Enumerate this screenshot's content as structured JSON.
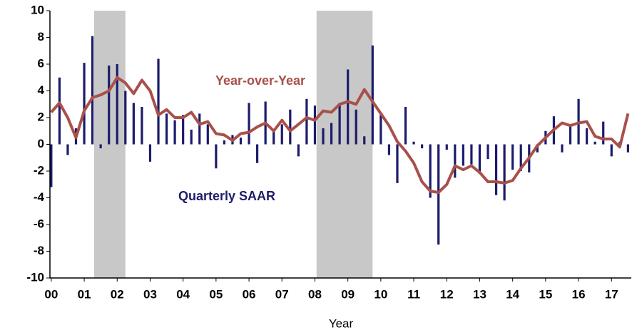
{
  "chart_data": {
    "type": "bar_line",
    "x_label": "Year",
    "annotations": [
      "Year-over-Year",
      "Quarterly SAAR"
    ],
    "xlim": [
      -0.04,
      17.6
    ],
    "ylim": [
      -10,
      10
    ],
    "yticks": [
      -10,
      -8,
      -6,
      -4,
      -2,
      0,
      2,
      4,
      6,
      8,
      10
    ],
    "xticks": [
      {
        "value": 0,
        "label": "00"
      },
      {
        "value": 1,
        "label": "01"
      },
      {
        "value": 2,
        "label": "02"
      },
      {
        "value": 3,
        "label": "03"
      },
      {
        "value": 4,
        "label": "04"
      },
      {
        "value": 5,
        "label": "05"
      },
      {
        "value": 6,
        "label": "06"
      },
      {
        "value": 7,
        "label": "07"
      },
      {
        "value": 8,
        "label": "08"
      },
      {
        "value": 9,
        "label": "09"
      },
      {
        "value": 10,
        "label": "10"
      },
      {
        "value": 11,
        "label": "11"
      },
      {
        "value": 12,
        "label": "12"
      },
      {
        "value": 13,
        "label": "13"
      },
      {
        "value": 14,
        "label": "14"
      },
      {
        "value": 15,
        "label": "15"
      },
      {
        "value": 16,
        "label": "16"
      },
      {
        "value": 17,
        "label": "17"
      }
    ],
    "shaded_regions": [
      [
        1.3,
        2.25
      ],
      [
        8.05,
        9.75
      ]
    ],
    "shade_color": "#c8c8c8",
    "x": [
      0,
      0.25,
      0.5,
      0.75,
      1,
      1.25,
      1.5,
      1.75,
      2,
      2.25,
      2.5,
      2.75,
      3,
      3.25,
      3.5,
      3.75,
      4,
      4.25,
      4.5,
      4.75,
      5,
      5.25,
      5.5,
      5.75,
      6,
      6.25,
      6.5,
      6.75,
      7,
      7.25,
      7.5,
      7.75,
      8,
      8.25,
      8.5,
      8.75,
      9,
      9.25,
      9.5,
      9.75,
      10,
      10.25,
      10.5,
      10.75,
      11,
      11.25,
      11.5,
      11.75,
      12,
      12.25,
      12.5,
      12.75,
      13,
      13.25,
      13.5,
      13.75,
      14,
      14.25,
      14.5,
      14.75,
      15,
      15.25,
      15.5,
      15.75,
      16,
      16.25,
      16.5,
      16.75,
      17,
      17.25,
      17.5
    ],
    "series": [
      {
        "name": "Quarterly SAAR",
        "kind": "bar",
        "color": "#1c1c6b",
        "values": [
          -3.2,
          5.0,
          -0.8,
          1.2,
          6.1,
          8.1,
          -0.3,
          5.9,
          6.0,
          4.0,
          3.1,
          2.8,
          -1.3,
          6.4,
          2.3,
          1.8,
          2.2,
          1.1,
          2.3,
          1.5,
          -1.8,
          0.3,
          0.7,
          0.5,
          3.1,
          -1.4,
          3.2,
          1.0,
          1.5,
          2.6,
          -0.9,
          3.4,
          2.9,
          1.2,
          1.6,
          3.1,
          5.6,
          2.6,
          0.6,
          7.4,
          2.2,
          -0.8,
          -2.9,
          2.8,
          0.2,
          -0.3,
          -4.0,
          -7.5,
          -0.4,
          -2.5,
          -1.6,
          -1.5,
          -2.2,
          -1.1,
          -3.8,
          -4.2,
          -1.9,
          -2.0,
          -2.1,
          -0.6,
          1.0,
          2.1,
          -0.6,
          1.5,
          3.4,
          1.2,
          0.2,
          1.7,
          -0.9,
          0.2,
          -0.6
        ]
      },
      {
        "name": "Year-over-Year",
        "kind": "line",
        "color": "#a9504b",
        "values": [
          2.4,
          3.1,
          2.0,
          0.5,
          2.5,
          3.5,
          3.7,
          4.0,
          5.0,
          4.6,
          3.8,
          4.8,
          4.0,
          2.2,
          2.6,
          2.0,
          2.0,
          2.4,
          1.5,
          1.7,
          0.8,
          0.7,
          0.3,
          0.8,
          0.9,
          1.3,
          1.6,
          1.0,
          1.8,
          1.0,
          1.5,
          2.0,
          1.8,
          2.5,
          2.4,
          3.0,
          3.2,
          3.0,
          4.1,
          3.2,
          2.3,
          1.4,
          0.2,
          -0.5,
          -1.4,
          -2.8,
          -3.5,
          -3.6,
          -3.0,
          -1.6,
          -1.9,
          -1.6,
          -2.1,
          -2.8,
          -2.8,
          -2.9,
          -2.7,
          -1.8,
          -1.0,
          -0.1,
          0.5,
          1.1,
          1.6,
          1.4,
          1.6,
          1.7,
          0.6,
          0.4,
          0.4,
          -0.2,
          2.3
        ]
      }
    ]
  }
}
